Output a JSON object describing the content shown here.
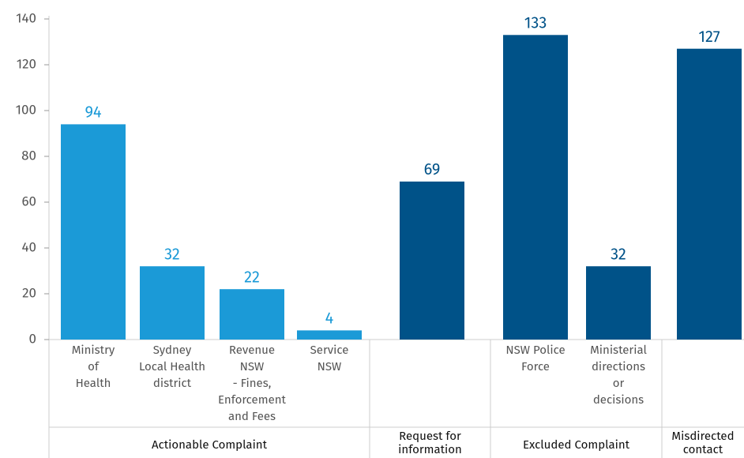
{
  "chart_data": {
    "type": "bar",
    "ylim": [
      0,
      140
    ],
    "yticks": [
      0,
      20,
      40,
      60,
      80,
      100,
      120,
      140
    ],
    "groups": [
      {
        "name": [
          "Actionable Complaint"
        ],
        "color": "#1b9ad7",
        "categories": [
          [
            "Ministry",
            "of",
            "Health"
          ],
          [
            "Sydney",
            "Local Health",
            "district"
          ],
          [
            "Revenue",
            "NSW",
            "- Fines,",
            "Enforcement",
            "and Fees"
          ],
          [
            "Service",
            "NSW"
          ]
        ],
        "values": [
          94,
          32,
          22,
          4
        ]
      },
      {
        "name": [
          "Request for",
          "information"
        ],
        "color": "#005288",
        "categories": [
          null
        ],
        "values": [
          69
        ]
      },
      {
        "name": [
          "Excluded Complaint"
        ],
        "color": "#005288",
        "categories": [
          [
            "NSW Police",
            "Force"
          ],
          [
            "Ministerial",
            "directions",
            "or",
            "decisions"
          ]
        ],
        "values": [
          133,
          32
        ]
      },
      {
        "name": [
          "Misdirected",
          "contact"
        ],
        "color": "#005288",
        "categories": [
          null
        ],
        "values": [
          127
        ]
      }
    ]
  }
}
